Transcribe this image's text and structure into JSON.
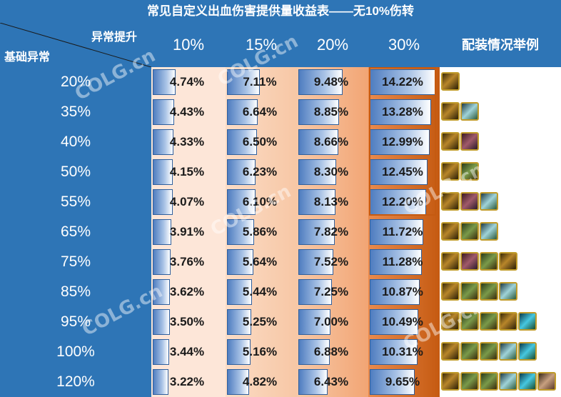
{
  "title": "常见自定义出血伤害提供量收益表——无10%伤转",
  "corner": {
    "top_label": "异常提升",
    "left_label": "基础异常"
  },
  "columns": [
    "10%",
    "15%",
    "20%",
    "30%"
  ],
  "example_header": "配装情况举例",
  "watermark": "COLG.cn",
  "colors": {
    "header_bg": "#2e75b6",
    "col1_bg": "#fde6d8",
    "col2_bg": "#f8cbad",
    "col3_bg": "#f4b183",
    "col4_bg": "#c55a11",
    "highlight_border": "#c55a11"
  },
  "rows": [
    {
      "base": "20%",
      "vals": [
        "4.74%",
        "7.11%",
        "9.48%",
        "14.22%"
      ],
      "fills": [
        0.33,
        0.5,
        0.67,
        1.0
      ],
      "icons": [
        "gold-bangle"
      ]
    },
    {
      "base": "35%",
      "vals": [
        "4.43%",
        "6.64%",
        "8.85%",
        "13.28%"
      ],
      "fills": [
        0.31,
        0.47,
        0.62,
        0.93
      ],
      "icons": [
        "gold-bangle",
        "crystal-amulet"
      ]
    },
    {
      "base": "40%",
      "vals": [
        "4.33%",
        "6.50%",
        "8.66%",
        "12.99%"
      ],
      "fills": [
        0.3,
        0.46,
        0.61,
        0.91
      ],
      "icons": [
        "gold-bangle",
        "armor-piece"
      ]
    },
    {
      "base": "50%",
      "vals": [
        "4.15%",
        "6.23%",
        "8.30%",
        "12.45%"
      ],
      "fills": [
        0.29,
        0.44,
        0.58,
        0.88
      ],
      "icons": [
        "gold-bangle",
        "silver-sword"
      ]
    },
    {
      "base": "55%",
      "vals": [
        "4.07%",
        "6.10%",
        "8.13%",
        "12.20%"
      ],
      "fills": [
        0.29,
        0.43,
        0.57,
        0.86
      ],
      "icons": [
        "gold-bangle",
        "armor-piece",
        "crystal-amulet"
      ]
    },
    {
      "base": "65%",
      "vals": [
        "3.91%",
        "5.86%",
        "7.82%",
        "11.72%"
      ],
      "fills": [
        0.27,
        0.41,
        0.55,
        0.82
      ],
      "icons": [
        "gold-bangle",
        "silver-sword",
        "crystal-amulet"
      ]
    },
    {
      "base": "75%",
      "vals": [
        "3.76%",
        "5.64%",
        "7.52%",
        "11.28%"
      ],
      "fills": [
        0.26,
        0.4,
        0.53,
        0.79
      ],
      "icons": [
        "gold-bangle",
        "armor-piece",
        "green-cloak",
        "gold-bangle"
      ]
    },
    {
      "base": "85%",
      "vals": [
        "3.62%",
        "5.44%",
        "7.25%",
        "10.87%"
      ],
      "fills": [
        0.25,
        0.38,
        0.51,
        0.76
      ],
      "icons": [
        "gold-bangle",
        "silver-sword",
        "green-cloak",
        "crystal-amulet"
      ]
    },
    {
      "base": "95%",
      "vals": [
        "3.50%",
        "5.25%",
        "7.00%",
        "10.49%"
      ],
      "fills": [
        0.25,
        0.37,
        0.49,
        0.74
      ],
      "icons": [
        "gold-bangle",
        "silver-sword",
        "green-cloak",
        "gold-bangle",
        "blue-gem"
      ]
    },
    {
      "base": "100%",
      "vals": [
        "3.44%",
        "5.16%",
        "6.88%",
        "10.31%"
      ],
      "fills": [
        0.24,
        0.36,
        0.48,
        0.73
      ],
      "icons": [
        "gold-bangle",
        "silver-sword",
        "green-cloak",
        "crystal-amulet",
        "blue-gem"
      ]
    },
    {
      "base": "120%",
      "vals": [
        "3.22%",
        "4.82%",
        "6.43%",
        "9.65%"
      ],
      "fills": [
        0.23,
        0.34,
        0.45,
        0.68
      ],
      "icons": [
        "gold-bangle",
        "silver-sword",
        "green-cloak",
        "crystal-amulet",
        "blue-gem",
        "leather-bag"
      ]
    }
  ]
}
